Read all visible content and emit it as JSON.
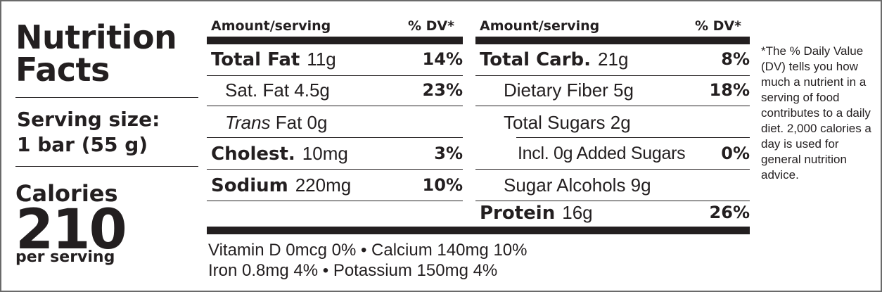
{
  "title": {
    "line1": "Nutrition",
    "line2": "Facts"
  },
  "serving": {
    "label": "Serving size:",
    "value": "1 bar (55 g)"
  },
  "calories": {
    "label": "Calories",
    "value": "210",
    "per": "per serving"
  },
  "left_table": {
    "header_amount": "Amount/serving",
    "header_dv": "% DV*",
    "rows": [
      {
        "name": "Total Fat",
        "amount": "11g",
        "dv": "14%"
      },
      {
        "name": "Sat. Fat 4.5g",
        "amount": "",
        "dv": "23%"
      },
      {
        "name_italic": "Trans",
        "name": " Fat 0g",
        "amount": "",
        "dv": ""
      },
      {
        "name": "Cholest.",
        "amount": "10mg",
        "dv": "3%"
      },
      {
        "name": "Sodium",
        "amount": "220mg",
        "dv": "10%"
      }
    ]
  },
  "right_table": {
    "header_amount": "Amount/serving",
    "header_dv": "% DV*",
    "rows": [
      {
        "name": "Total Carb.",
        "amount": "21g",
        "dv": "8%"
      },
      {
        "name": "Dietary Fiber 5g",
        "amount": "",
        "dv": "18%"
      },
      {
        "name": "Total Sugars 2g",
        "amount": "",
        "dv": ""
      },
      {
        "name": "Incl. 0g Added Sugars",
        "amount": "",
        "dv": "0%"
      },
      {
        "name": "Sugar Alcohols 9g",
        "amount": "",
        "dv": ""
      },
      {
        "name": "Protein",
        "amount": "16g",
        "dv": "26%"
      }
    ]
  },
  "vitamins": {
    "line1": "Vitamin D 0mcg 0%  •  Calcium 140mg 10%",
    "line2": "Iron 0.8mg 4%  •  Potassium 150mg 4%"
  },
  "footnote": "*The % Daily Value (DV) tells you how much a nutrient in a serving of food contributes to a daily diet. 2,000 calories a day is used for general nutrition advice."
}
